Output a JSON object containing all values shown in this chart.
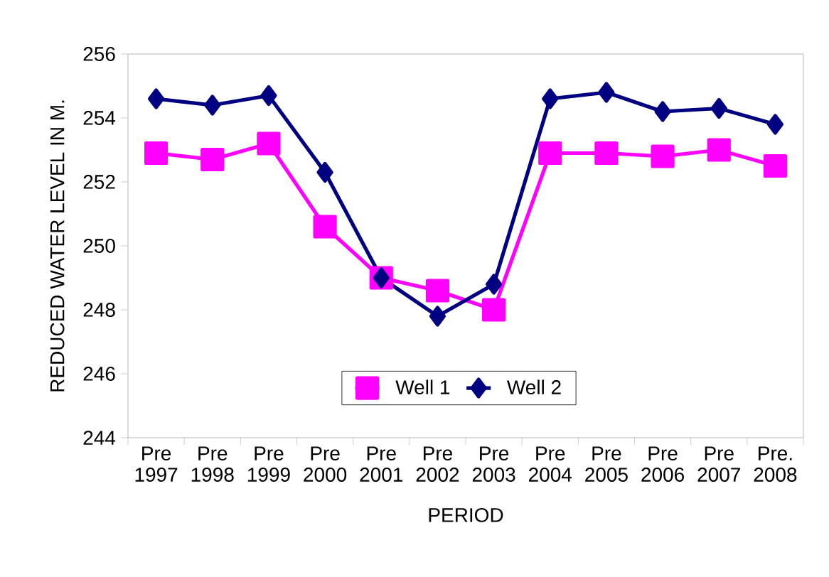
{
  "chart_data": {
    "type": "line",
    "xlabel": "PERIOD",
    "ylabel": "REDUCED WATER LEVEL IN M.",
    "categories": [
      "Pre 1997",
      "Pre 1998",
      "Pre 1999",
      "Pre 2000",
      "Pre 2001",
      "Pre 2002",
      "Pre 2003",
      "Pre 2004",
      "Pre 2005",
      "Pre 2006",
      "Pre 2007",
      "Pre. 2008"
    ],
    "series": [
      {
        "name": "Well 1",
        "color": "#ff00ff",
        "marker": "square",
        "values": [
          252.9,
          252.7,
          253.2,
          250.6,
          249.0,
          248.6,
          248.0,
          252.9,
          252.9,
          252.8,
          253.0,
          252.5
        ]
      },
      {
        "name": "Well 2",
        "color": "#000080",
        "marker": "diamond",
        "values": [
          254.6,
          254.4,
          254.7,
          252.3,
          249.0,
          247.8,
          248.8,
          254.6,
          254.8,
          254.2,
          254.3,
          253.8
        ]
      }
    ],
    "ylim": [
      244,
      256
    ],
    "yticks": [
      244,
      246,
      248,
      250,
      252,
      254,
      256
    ],
    "grid": false,
    "legend": "bottom",
    "line_style": "solid"
  }
}
